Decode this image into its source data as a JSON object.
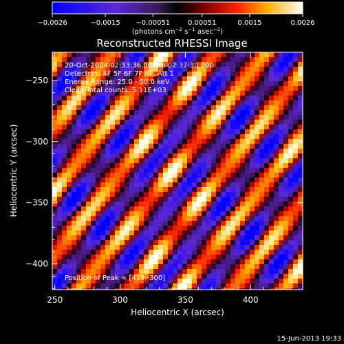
{
  "chart_data": {
    "type": "heatmap",
    "title": "Reconstructed RHESSI Image",
    "xlabel": "Heliocentric X (arcsec)",
    "ylabel": "Heliocentric Y (arcsec)",
    "xlim": [
      248,
      440
    ],
    "ylim": [
      -421,
      -227
    ],
    "x_ticks": [
      250,
      300,
      350,
      400
    ],
    "y_ticks": [
      -250,
      -300,
      -350,
      -400
    ],
    "x_tick_labels": [
      "250",
      "300",
      "350",
      "400"
    ],
    "y_tick_labels": [
      "−250",
      "−300",
      "−350",
      "−400"
    ],
    "colorbar": {
      "range": [
        -0.0026,
        0.0026
      ],
      "ticks": [
        -0.0026,
        -0.0015,
        -0.00051,
        0.00051,
        0.0015,
        0.0026
      ],
      "tick_labels": [
        "−0.0026",
        "−0.0015",
        "−0.00051",
        "0.00051",
        "0.0015",
        "0.0026"
      ],
      "unit_label_parts": {
        "a": "(photons cm",
        "b": "−2",
        "c": " s",
        "d": "−1",
        "e": " asec",
        "f": "−2",
        "g": ")"
      }
    },
    "annotations": [
      "20-Oct-2004 02:33:36.000 to 02:37:30.000",
      "Detectors: 4F 5F 6F 7F 8F, Att 1",
      "Energy Range: 25.0 - 50.0 keV",
      "Clean     Total counts: 5.11E+03"
    ],
    "peak_label": "Position of Peak = [418,-300]",
    "peak": [
      418,
      -300
    ]
  },
  "footer": {
    "timestamp": "15-Jun-2013 19:33"
  }
}
